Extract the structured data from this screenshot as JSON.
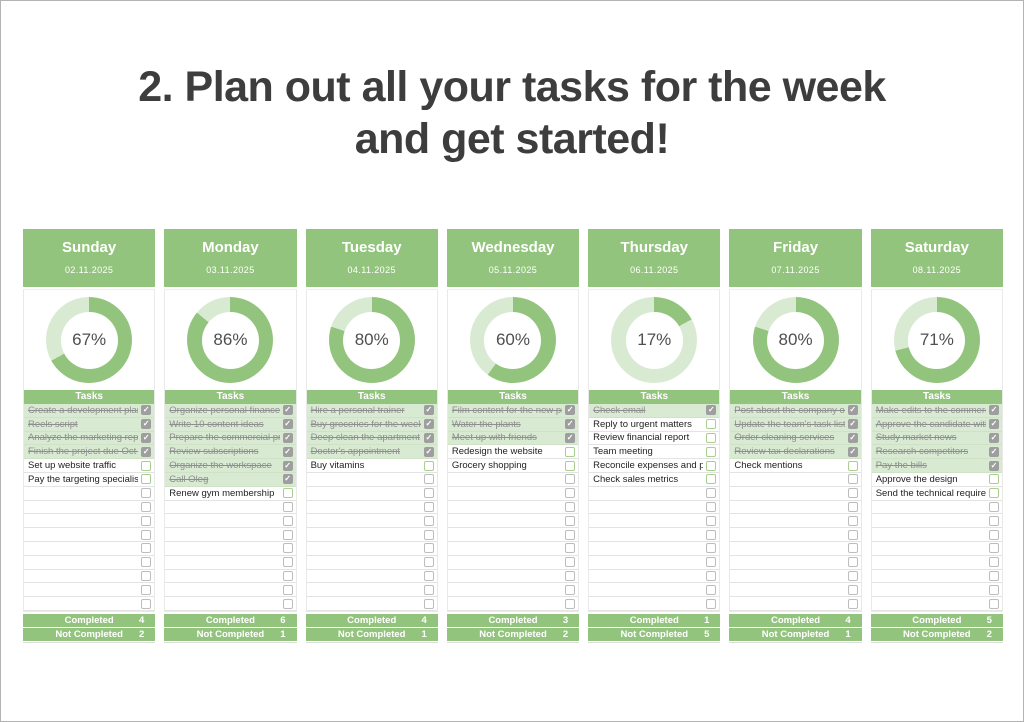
{
  "page": {
    "title_line1": "2. Plan out all your tasks for the week",
    "title_line2": "and get started!"
  },
  "labels": {
    "tasks_header": "Tasks",
    "completed": "Completed",
    "not_completed": "Not Completed",
    "check_icon": "✓"
  },
  "colors": {
    "green": "#93c47d",
    "light_green": "#d9ead3",
    "done_row_bg": "#d9ead3",
    "checked_box": "#9e9e9e",
    "title_text": "#3d3d3d"
  },
  "rows_per_day": 15,
  "days": [
    {
      "name": "Sunday",
      "date": "02.11.2025",
      "percent": 67,
      "completed": 4,
      "not_completed": 2,
      "tasks": [
        {
          "text": "Create a development plan",
          "done": true
        },
        {
          "text": "Reels script",
          "done": true
        },
        {
          "text": "Analyze the marketing report",
          "done": true
        },
        {
          "text": "Finish the project due Oct 31",
          "done": true
        },
        {
          "text": "Set up website traffic",
          "done": false
        },
        {
          "text": "Pay the targeting specialist",
          "done": false
        }
      ]
    },
    {
      "name": "Monday",
      "date": "03.11.2025",
      "percent": 86,
      "completed": 6,
      "not_completed": 1,
      "tasks": [
        {
          "text": "Organize personal finances",
          "done": true
        },
        {
          "text": "Write 10 content ideas",
          "done": true
        },
        {
          "text": "Prepare the commercial proposal",
          "done": true
        },
        {
          "text": "Review subscriptions",
          "done": true
        },
        {
          "text": "Organize the workspace",
          "done": true
        },
        {
          "text": "Call Oleg",
          "done": true
        },
        {
          "text": "Renew gym membership",
          "done": false
        }
      ]
    },
    {
      "name": "Tuesday",
      "date": "04.11.2025",
      "percent": 80,
      "completed": 4,
      "not_completed": 1,
      "tasks": [
        {
          "text": "Hire a personal trainer",
          "done": true
        },
        {
          "text": "Buy groceries for the week",
          "done": true
        },
        {
          "text": "Deep clean the apartment",
          "done": true
        },
        {
          "text": "Doctor's appointment",
          "done": true
        },
        {
          "text": "Buy vitamins",
          "done": false
        }
      ]
    },
    {
      "name": "Wednesday",
      "date": "05.11.2025",
      "percent": 60,
      "completed": 3,
      "not_completed": 2,
      "tasks": [
        {
          "text": "Film content for the new project",
          "done": true
        },
        {
          "text": "Water the plants",
          "done": true
        },
        {
          "text": "Meet up with friends",
          "done": true
        },
        {
          "text": "Redesign the website",
          "done": false
        },
        {
          "text": "Grocery shopping",
          "done": false
        }
      ]
    },
    {
      "name": "Thursday",
      "date": "06.11.2025",
      "percent": 17,
      "completed": 1,
      "not_completed": 5,
      "tasks": [
        {
          "text": "Check email",
          "done": true
        },
        {
          "text": "Reply to urgent matters",
          "done": false
        },
        {
          "text": "Review financial report",
          "done": false
        },
        {
          "text": "Team meeting",
          "done": false
        },
        {
          "text": "Reconcile expenses and payments",
          "done": false
        },
        {
          "text": "Check sales metrics",
          "done": false
        }
      ]
    },
    {
      "name": "Friday",
      "date": "07.11.2025",
      "percent": 80,
      "completed": 4,
      "not_completed": 1,
      "tasks": [
        {
          "text": "Post about the company on social media",
          "done": true
        },
        {
          "text": "Update the team's task list",
          "done": true
        },
        {
          "text": "Order cleaning services",
          "done": true
        },
        {
          "text": "Review tax declarations",
          "done": true
        },
        {
          "text": "Check mentions",
          "done": false
        }
      ]
    },
    {
      "name": "Saturday",
      "date": "08.11.2025",
      "percent": 71,
      "completed": 5,
      "not_completed": 2,
      "tasks": [
        {
          "text": "Make edits to the commercial proposal",
          "done": true
        },
        {
          "text": "Approve the candidate with HR",
          "done": true
        },
        {
          "text": "Study market news",
          "done": true
        },
        {
          "text": "Research competitors",
          "done": true
        },
        {
          "text": "Pay the bills",
          "done": true
        },
        {
          "text": "Approve the design",
          "done": false
        },
        {
          "text": "Send the technical requirements",
          "done": false
        }
      ]
    }
  ]
}
